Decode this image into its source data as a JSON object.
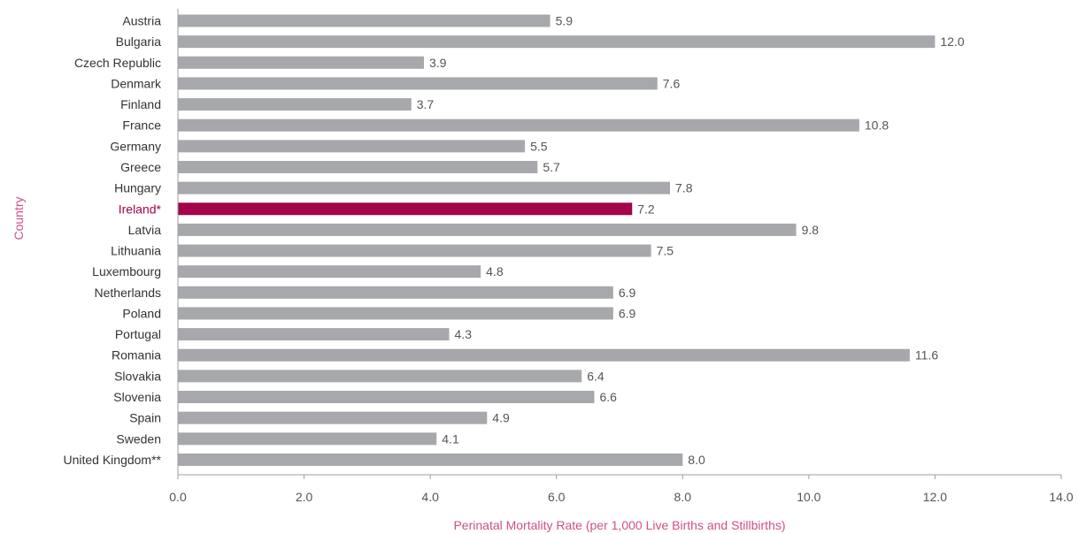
{
  "chart_data": {
    "type": "bar",
    "orientation": "horizontal",
    "categories": [
      "Austria",
      "Bulgaria",
      "Czech Republic",
      "Denmark",
      "Finland",
      "France",
      "Germany",
      "Greece",
      "Hungary",
      "Ireland*",
      "Latvia",
      "Lithuania",
      "Luxembourg",
      "Netherlands",
      "Poland",
      "Portugal",
      "Romania",
      "Slovakia",
      "Slovenia",
      "Spain",
      "Sweden",
      "United Kingdom**"
    ],
    "values": [
      5.9,
      12.0,
      3.9,
      7.6,
      3.7,
      10.8,
      5.5,
      5.7,
      7.8,
      7.2,
      9.8,
      7.5,
      4.8,
      6.9,
      6.9,
      4.3,
      11.6,
      6.4,
      6.6,
      4.9,
      4.1,
      8.0
    ],
    "value_labels": [
      "5.9",
      "12.0",
      "3.9",
      "7.6",
      "3.7",
      "10.8",
      "5.5",
      "5.7",
      "7.8",
      "7.2",
      "9.8",
      "7.5",
      "4.8",
      "6.9",
      "6.9",
      "4.3",
      "11.6",
      "6.4",
      "6.6",
      "4.9",
      "4.1",
      "8.0"
    ],
    "highlight_category": "Ireland*",
    "xlabel": "Perinatal Mortality Rate (per 1,000 Live Births and Stillbirths)",
    "ylabel": "Country",
    "xlim": [
      0,
      14
    ],
    "xticks": [
      0,
      2,
      4,
      6,
      8,
      10,
      12,
      14
    ],
    "xtick_labels": [
      "0.0",
      "2.0",
      "4.0",
      "6.0",
      "8.0",
      "10.0",
      "12.0",
      "14.0"
    ],
    "grid": false,
    "colors": {
      "bar": "#a7a8ab",
      "highlight": "#a3034a",
      "axis_title": "#d14f86",
      "category_label": "#333333",
      "axis_line": "#9e9e9e"
    }
  }
}
